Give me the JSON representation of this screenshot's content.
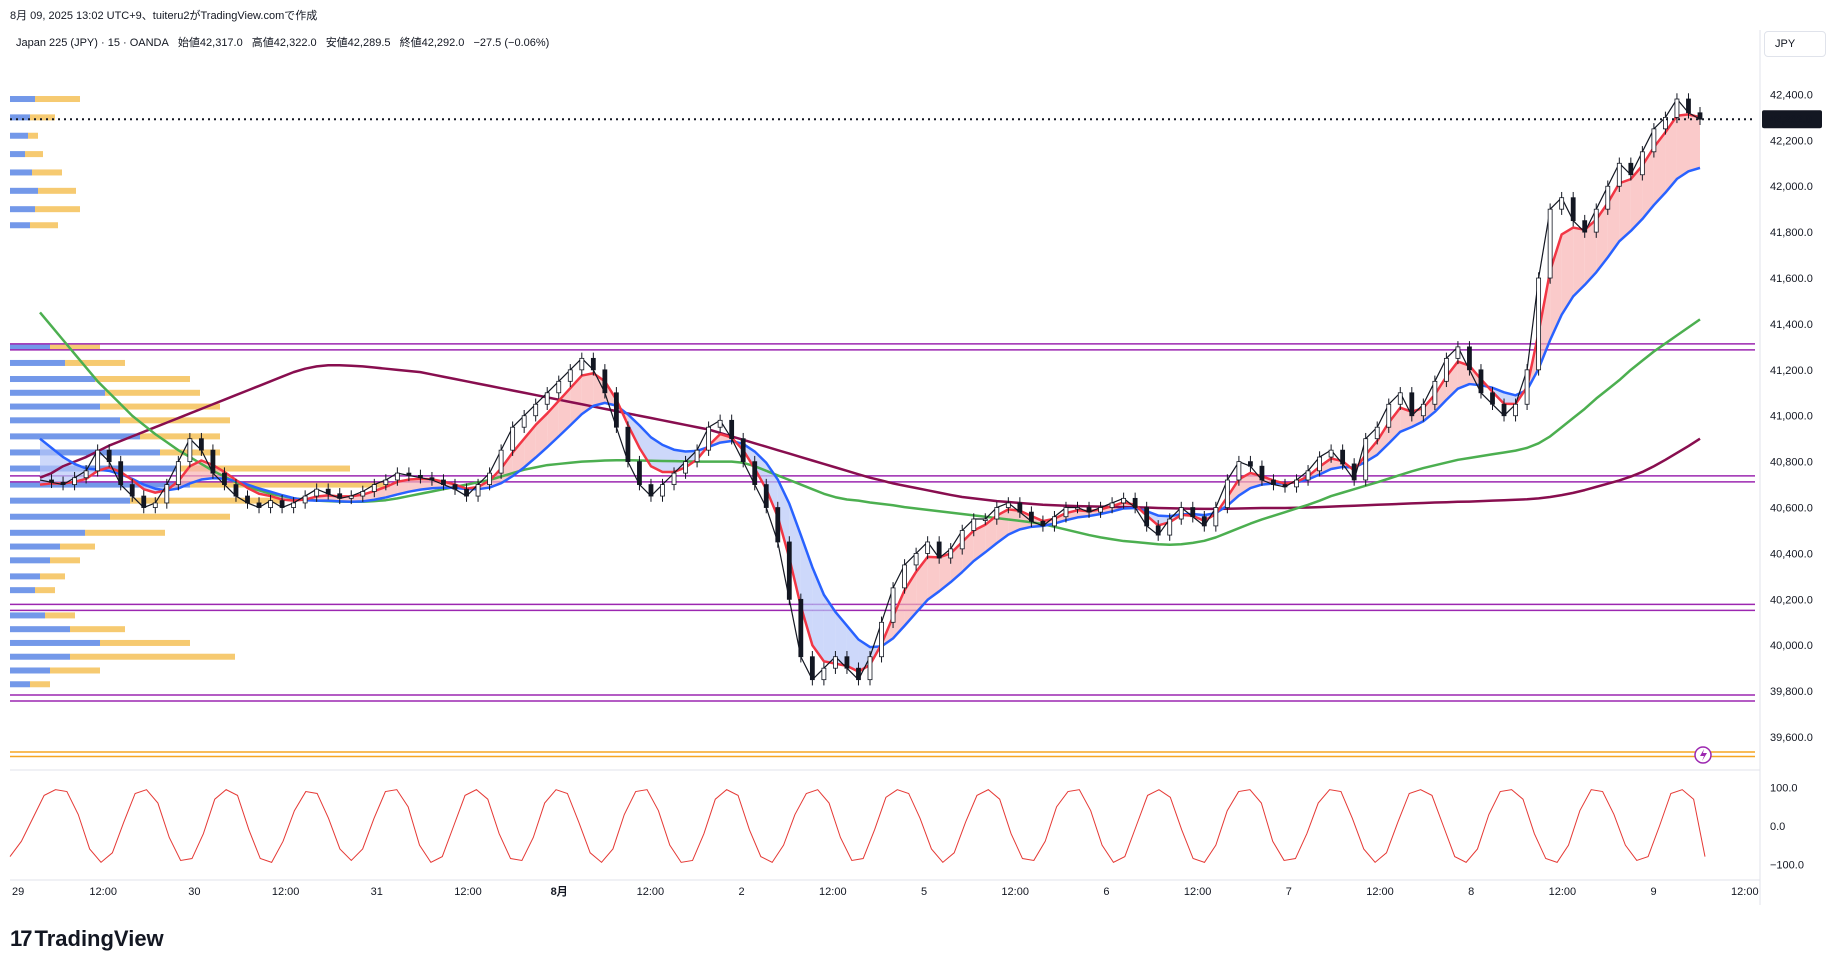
{
  "header": {
    "snapshot": "8月 09, 2025 13:02 UTC+9、tuiteru2がTradingView.comで作成",
    "symbol": "Japan 225 (JPY) · 15 · OANDA",
    "open": "始値42,317.0",
    "high": "高値42,322.0",
    "low": "安値42,289.5",
    "close": "終値42,292.0",
    "change": "−27.5 (−0.06%)"
  },
  "currency_button": "JPY",
  "brand": "TradingView",
  "colors": {
    "candle": "#131722",
    "ema_fast": "#f23645",
    "ema_mid": "#2962ff",
    "ma_green": "#4caf50",
    "ma_maroon": "#880e4f",
    "fill_up": "#f8b4b4",
    "fill_down": "#b8c8f8",
    "vp_up": "#5b86e5",
    "vp_down": "#f5c158",
    "level_line": "#9c27b0",
    "stoch_line": "#e53935"
  },
  "chart_data": {
    "type": "line",
    "title": "Japan 225 (JPY) · 15 · OANDA",
    "ylim": [
      39500,
      42550
    ],
    "last_price": 42292.0,
    "last_price_label": "42,292.0",
    "y_ticks": [
      "42,400.0",
      "42,200.0",
      "42,000.0",
      "41,800.0",
      "41,600.0",
      "41,400.0",
      "41,200.0",
      "41,000.0",
      "40,800.0",
      "40,600.0",
      "40,400.0",
      "40,200.0",
      "40,000.0",
      "39,800.0",
      "39,600.0"
    ],
    "x_ticks": [
      "29",
      "12:00",
      "30",
      "12:00",
      "31",
      "12:00",
      "8月",
      "12:00",
      "2",
      "12:00",
      "5",
      "12:00",
      "6",
      "12:00",
      "7",
      "12:00",
      "8",
      "12:00",
      "9",
      "12:00"
    ],
    "x_tick_bold": [
      false,
      false,
      false,
      false,
      false,
      false,
      true,
      false,
      false,
      false,
      false,
      false,
      false,
      false,
      false,
      false,
      false,
      false,
      false,
      false
    ],
    "horizontal_levels": [
      41300,
      40725,
      40165,
      39770
    ],
    "orange_levels": [
      39535,
      39515
    ],
    "series": [
      {
        "name": "close",
        "values": [
          40720,
          40710,
          40700,
          40730,
          40760,
          40850,
          40800,
          40700,
          40650,
          40600,
          40620,
          40700,
          40800,
          40900,
          40850,
          40750,
          40700,
          40650,
          40620,
          40600,
          40630,
          40600,
          40620,
          40650,
          40680,
          40660,
          40640,
          40650,
          40670,
          40700,
          40720,
          40750,
          40740,
          40730,
          40720,
          40700,
          40680,
          40650,
          40700,
          40750,
          40850,
          40950,
          41000,
          41050,
          41100,
          41150,
          41200,
          41250,
          41200,
          41100,
          40950,
          40800,
          40700,
          40650,
          40700,
          40750,
          40800,
          40850,
          40950,
          40980,
          40900,
          40800,
          40700,
          40600,
          40450,
          40200,
          39950,
          39850,
          39900,
          39950,
          39900,
          39850,
          39950,
          40100,
          40250,
          40350,
          40400,
          40450,
          40380,
          40420,
          40500,
          40550,
          40550,
          40600,
          40620,
          40580,
          40540,
          40520,
          40560,
          40600,
          40600,
          40580,
          40600,
          40620,
          40640,
          40600,
          40520,
          40480,
          40550,
          40600,
          40560,
          40520,
          40600,
          40720,
          40800,
          40780,
          40720,
          40700,
          40690,
          40720,
          40760,
          40820,
          40850,
          40790,
          40720,
          40900,
          40950,
          41050,
          41100,
          41000,
          41050,
          41150,
          41250,
          41300,
          41200,
          41100,
          41050,
          41000,
          41050,
          41200,
          41600,
          41900,
          41950,
          41850,
          41800,
          41900,
          42000,
          42100,
          42050,
          42150,
          42250,
          42300,
          42380,
          42320,
          42292
        ]
      },
      {
        "name": "ema_fast",
        "values": [
          40700,
          40705,
          40705,
          40712,
          40725,
          40760,
          40775,
          40755,
          40720,
          40680,
          40665,
          40675,
          40715,
          40780,
          40805,
          40785,
          40755,
          40720,
          40685,
          40660,
          40650,
          40635,
          40630,
          40635,
          40648,
          40653,
          40648,
          40649,
          40656,
          40672,
          40690,
          40712,
          40722,
          40725,
          40723,
          40713,
          40700,
          40682,
          40690,
          40717,
          40770,
          40840,
          40900,
          40960,
          41010,
          41065,
          41120,
          41175,
          41185,
          41150,
          41070,
          40960,
          40860,
          40780,
          40755,
          40755,
          40775,
          40810,
          40870,
          40920,
          40905,
          40850,
          40770,
          40680,
          40560,
          40380,
          40170,
          40000,
          39930,
          39920,
          39910,
          39885,
          39915,
          40005,
          40125,
          40240,
          40320,
          40385,
          40383,
          40400,
          40450,
          40500,
          40525,
          40565,
          40592,
          40586,
          40563,
          40541,
          40551,
          40576,
          40588,
          40584,
          40592,
          40606,
          40623,
          40611,
          40565,
          40522,
          40536,
          40568,
          40564,
          40542,
          40572,
          40646,
          40723,
          40751,
          40736,
          40718,
          40704,
          40712,
          40736,
          40778,
          40814,
          40802,
          40761,
          40830,
          40890,
          40970,
          41035,
          41017,
          41034,
          41092,
          41171,
          41236,
          41218,
          41159,
          41104,
          41052,
          41051,
          41125,
          41362,
          41631,
          41790,
          41820,
          41810,
          41855,
          41927,
          42013,
          42031,
          42090,
          42170,
          42235,
          42307,
          42313,
          42300
        ]
      },
      {
        "name": "ema_mid",
        "values": [
          40900,
          40860,
          40820,
          40790,
          40770,
          40765,
          40760,
          40745,
          40725,
          40700,
          40682,
          40675,
          40683,
          40705,
          40722,
          40728,
          40726,
          40716,
          40700,
          40683,
          40669,
          40654,
          40641,
          40632,
          40630,
          40630,
          40627,
          40625,
          40627,
          40634,
          40644,
          40657,
          40669,
          40678,
          40684,
          40687,
          40686,
          40680,
          40680,
          40687,
          40706,
          40737,
          40775,
          40818,
          40863,
          40910,
          40958,
          41007,
          41043,
          41056,
          41044,
          41006,
          40958,
          40906,
          40873,
          40852,
          40844,
          40847,
          40864,
          40883,
          40890,
          40877,
          40844,
          40795,
          40722,
          40617,
          40480,
          40340,
          40220,
          40145,
          40085,
          40025,
          39992,
          39995,
          40030,
          40085,
          40142,
          40198,
          40235,
          40275,
          40319,
          40367,
          40405,
          40445,
          40482,
          40505,
          40516,
          40520,
          40530,
          40545,
          40557,
          40563,
          40572,
          40583,
          40596,
          40598,
          40584,
          40565,
          40562,
          40571,
          40572,
          40567,
          40576,
          40608,
          40652,
          40685,
          40700,
          40705,
          40705,
          40710,
          40722,
          40744,
          40768,
          40777,
          40774,
          40799,
          40830,
          40879,
          40930,
          40951,
          40976,
          41017,
          41069,
          41118,
          41138,
          41133,
          41122,
          41102,
          41089,
          41112,
          41205,
          41330,
          41440,
          41520,
          41570,
          41625,
          41690,
          41760,
          41805,
          41857,
          41918,
          41972,
          42032,
          42065,
          42080
        ]
      },
      {
        "name": "ma_green",
        "values": [
          41450,
          41390,
          41330,
          41270,
          41210,
          41150,
          41100,
          41050,
          41000,
          40960,
          40920,
          40885,
          40850,
          40820,
          40790,
          40760,
          40735,
          40710,
          40690,
          40675,
          40660,
          40650,
          40640,
          40635,
          40630,
          40628,
          40626,
          40625,
          40625,
          40628,
          40632,
          40640,
          40650,
          40660,
          40670,
          40680,
          40690,
          40700,
          40710,
          40720,
          40735,
          40750,
          40765,
          40775,
          40785,
          40790,
          40795,
          40800,
          40802,
          40805,
          40806,
          40806,
          40805,
          40804,
          40803,
          40802,
          40801,
          40800,
          40800,
          40800,
          40800,
          40795,
          40780,
          40760,
          40740,
          40720,
          40700,
          40680,
          40660,
          40645,
          40635,
          40630,
          40622,
          40616,
          40610,
          40602,
          40596,
          40590,
          40584,
          40578,
          40572,
          40566,
          40560,
          40554,
          40548,
          40542,
          40536,
          40528,
          40516,
          40504,
          40492,
          40480,
          40470,
          40462,
          40454,
          40450,
          40445,
          40440,
          40438,
          40440,
          40446,
          40455,
          40470,
          40490,
          40510,
          40530,
          40548,
          40564,
          40580,
          40596,
          40612,
          40630,
          40650,
          40665,
          40680,
          40695,
          40710,
          40726,
          40742,
          40758,
          40772,
          40784,
          40796,
          40808,
          40816,
          40824,
          40832,
          40840,
          40848,
          40860,
          40880,
          40910,
          40950,
          40990,
          41030,
          41075,
          41115,
          41155,
          41200,
          41240,
          41280,
          41315,
          41350,
          41385,
          41420
        ]
      },
      {
        "name": "ma_maroon",
        "values": [
          40730,
          40750,
          40780,
          40800,
          40820,
          40845,
          40870,
          40890,
          40910,
          40930,
          40950,
          40970,
          40990,
          41010,
          41030,
          41050,
          41070,
          41090,
          41110,
          41130,
          41150,
          41170,
          41190,
          41205,
          41215,
          41220,
          41220,
          41218,
          41215,
          41210,
          41205,
          41200,
          41195,
          41190,
          41180,
          41170,
          41160,
          41150,
          41140,
          41130,
          41120,
          41110,
          41100,
          41090,
          41080,
          41070,
          41060,
          41050,
          41040,
          41030,
          41020,
          41010,
          41000,
          40990,
          40980,
          40970,
          40960,
          40950,
          40940,
          40925,
          40910,
          40895,
          40880,
          40865,
          40850,
          40835,
          40820,
          40805,
          40790,
          40775,
          40760,
          40745,
          40730,
          40718,
          40705,
          40695,
          40685,
          40675,
          40665,
          40655,
          40646,
          40640,
          40634,
          40628,
          40624,
          40620,
          40616,
          40612,
          40610,
          40608,
          40606,
          40605,
          40604,
          40603,
          40602,
          40601,
          40600,
          40598,
          40597,
          40596,
          40595,
          40594,
          40594,
          40595,
          40596,
          40597,
          40598,
          40598,
          40598,
          40599,
          40600,
          40602,
          40604,
          40606,
          40608,
          40610,
          40612,
          40614,
          40616,
          40618,
          40620,
          40622,
          40623,
          40625,
          40626,
          40628,
          40630,
          40632,
          40634,
          40636,
          40640,
          40646,
          40654,
          40664,
          40676,
          40690,
          40704,
          40718,
          40735,
          40755,
          40780,
          40808,
          40838,
          40868,
          40900
        ]
      }
    ],
    "stochastic": {
      "name": "stochastic",
      "ylim": [
        -115,
        115
      ],
      "y_ticks": [
        "100.0",
        "0.0",
        "−100.0"
      ],
      "values": [
        -80,
        -40,
        20,
        80,
        95,
        90,
        30,
        -60,
        -95,
        -70,
        10,
        85,
        95,
        60,
        -30,
        -90,
        -85,
        -20,
        70,
        95,
        80,
        -10,
        -85,
        -95,
        -40,
        40,
        90,
        85,
        20,
        -60,
        -90,
        -60,
        20,
        90,
        95,
        50,
        -50,
        -95,
        -80,
        0,
        80,
        95,
        70,
        -20,
        -85,
        -90,
        -30,
        60,
        95,
        85,
        10,
        -70,
        -95,
        -60,
        30,
        90,
        95,
        40,
        -50,
        -95,
        -90,
        -20,
        70,
        95,
        80,
        -10,
        -80,
        -95,
        -50,
        30,
        85,
        95,
        60,
        -30,
        -90,
        -85,
        -10,
        75,
        95,
        85,
        20,
        -60,
        -95,
        -70,
        10,
        80,
        95,
        70,
        -20,
        -85,
        -90,
        -40,
        50,
        90,
        95,
        40,
        -50,
        -95,
        -80,
        0,
        80,
        95,
        75,
        -10,
        -85,
        -95,
        -50,
        40,
        90,
        95,
        60,
        -40,
        -90,
        -85,
        -20,
        60,
        95,
        90,
        20,
        -60,
        -95,
        -70,
        10,
        85,
        95,
        80,
        0,
        -80,
        -95,
        -60,
        30,
        90,
        95,
        70,
        -20,
        -85,
        -95,
        -50,
        40,
        95,
        90,
        30,
        -50,
        -90,
        -80,
        0,
        85,
        95,
        70,
        -80
      ]
    },
    "volume_profile": [
      {
        "price": 42380,
        "up": 25,
        "down": 45
      },
      {
        "price": 42300,
        "up": 20,
        "down": 25
      },
      {
        "price": 42220,
        "up": 18,
        "down": 10
      },
      {
        "price": 42140,
        "up": 15,
        "down": 18
      },
      {
        "price": 42060,
        "up": 22,
        "down": 30
      },
      {
        "price": 41980,
        "up": 28,
        "down": 38
      },
      {
        "price": 41900,
        "up": 25,
        "down": 45
      },
      {
        "price": 41830,
        "up": 20,
        "down": 28
      },
      {
        "price": 41300,
        "up": 40,
        "down": 50
      },
      {
        "price": 41230,
        "up": 55,
        "down": 60
      },
      {
        "price": 41160,
        "up": 85,
        "down": 95
      },
      {
        "price": 41100,
        "up": 95,
        "down": 95
      },
      {
        "price": 41040,
        "up": 90,
        "down": 120
      },
      {
        "price": 40980,
        "up": 110,
        "down": 110
      },
      {
        "price": 40910,
        "up": 130,
        "down": 80
      },
      {
        "price": 40840,
        "up": 150,
        "down": 60
      },
      {
        "price": 40770,
        "up": 170,
        "down": 170
      },
      {
        "price": 40700,
        "up": 180,
        "down": 200
      },
      {
        "price": 40630,
        "up": 120,
        "down": 150
      },
      {
        "price": 40560,
        "up": 100,
        "down": 120
      },
      {
        "price": 40490,
        "up": 75,
        "down": 80
      },
      {
        "price": 40430,
        "up": 50,
        "down": 35
      },
      {
        "price": 40370,
        "up": 40,
        "down": 30
      },
      {
        "price": 40300,
        "up": 30,
        "down": 25
      },
      {
        "price": 40240,
        "up": 25,
        "down": 20
      },
      {
        "price": 40130,
        "up": 35,
        "down": 30
      },
      {
        "price": 40070,
        "up": 60,
        "down": 55
      },
      {
        "price": 40010,
        "up": 90,
        "down": 90
      },
      {
        "price": 39950,
        "up": 60,
        "down": 165
      },
      {
        "price": 39890,
        "up": 40,
        "down": 50
      },
      {
        "price": 39830,
        "up": 20,
        "down": 20
      }
    ]
  }
}
